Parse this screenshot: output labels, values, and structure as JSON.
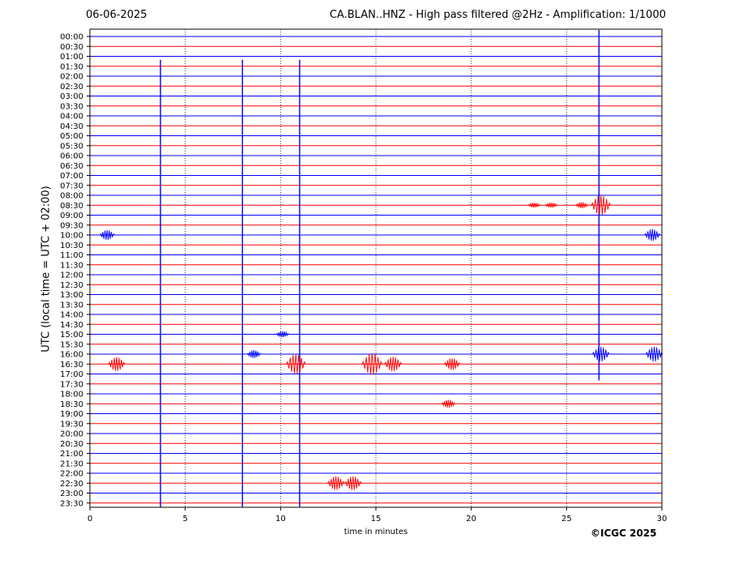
{
  "header": {
    "date": "06-06-2025",
    "title": "CA.BLAN..HNZ - High pass filtered @2Hz - Amplification: 1/1000"
  },
  "footer": {
    "copyright": "©ICGC 2025"
  },
  "colors": {
    "trace_a": "#ff0000",
    "trace_b": "#0000ff",
    "axis": "#000000",
    "grid": "#000000"
  },
  "chart_data": {
    "type": "line",
    "title": "CA.BLAN..HNZ - High pass filtered @2Hz - Amplification: 1/1000",
    "xlabel": "time in minutes",
    "ylabel": "UTC (local time = UTC + 02:00)",
    "xlim": [
      0,
      30
    ],
    "x_ticks": [
      0,
      5,
      10,
      15,
      20,
      25,
      30
    ],
    "grid": "vertical dotted lines at 5-minute ticks",
    "row_labels": [
      "00:00",
      "00:30",
      "01:00",
      "01:30",
      "02:00",
      "02:30",
      "03:00",
      "03:30",
      "04:00",
      "04:30",
      "05:00",
      "05:30",
      "06:00",
      "06:30",
      "07:00",
      "07:30",
      "08:00",
      "08:30",
      "09:00",
      "09:30",
      "10:00",
      "10:30",
      "11:00",
      "11:30",
      "12:00",
      "12:30",
      "13:00",
      "13:30",
      "14:00",
      "14:30",
      "15:00",
      "15:30",
      "16:00",
      "16:30",
      "17:00",
      "17:30",
      "18:00",
      "18:30",
      "19:00",
      "19:30",
      "20:00",
      "20:30",
      "21:00",
      "21:30",
      "22:00",
      "22:30",
      "23:00",
      "23:30"
    ],
    "trace_colors_alternate": [
      "blue",
      "red"
    ],
    "events": [
      {
        "row": "08:30",
        "minute": 23.3,
        "amplitude": 0.5
      },
      {
        "row": "08:30",
        "minute": 24.2,
        "amplitude": 0.5
      },
      {
        "row": "08:30",
        "minute": 25.8,
        "amplitude": 0.6
      },
      {
        "row": "08:30",
        "minute": 26.8,
        "amplitude": 2.0
      },
      {
        "row": "10:00",
        "minute": 0.9,
        "amplitude": 1.0
      },
      {
        "row": "10:00",
        "minute": 29.5,
        "amplitude": 1.2
      },
      {
        "row": "15:00",
        "minute": 10.1,
        "amplitude": 0.6
      },
      {
        "row": "16:00",
        "minute": 8.6,
        "amplitude": 0.8
      },
      {
        "row": "16:00",
        "minute": 26.8,
        "amplitude": 1.5
      },
      {
        "row": "16:00",
        "minute": 29.6,
        "amplitude": 1.5
      },
      {
        "row": "16:30",
        "minute": 1.4,
        "amplitude": 1.4
      },
      {
        "row": "16:30",
        "minute": 10.8,
        "amplitude": 2.0
      },
      {
        "row": "16:30",
        "minute": 14.8,
        "amplitude": 2.2
      },
      {
        "row": "16:30",
        "minute": 15.9,
        "amplitude": 1.5
      },
      {
        "row": "16:30",
        "minute": 19.0,
        "amplitude": 1.2
      },
      {
        "row": "18:30",
        "minute": 18.8,
        "amplitude": 0.8
      },
      {
        "row": "22:30",
        "minute": 12.9,
        "amplitude": 1.4
      },
      {
        "row": "22:30",
        "minute": 13.8,
        "amplitude": 1.4
      }
    ],
    "spikes": [
      {
        "minute": 3.7,
        "from_row": "01:30",
        "to_row": "23:30"
      },
      {
        "minute": 8.0,
        "from_row": "01:30",
        "to_row": "23:30"
      },
      {
        "minute": 11.0,
        "from_row": "01:30",
        "to_row": "23:30"
      },
      {
        "minute": 26.7,
        "from_row": "00:00",
        "to_row": "17:00"
      }
    ]
  }
}
